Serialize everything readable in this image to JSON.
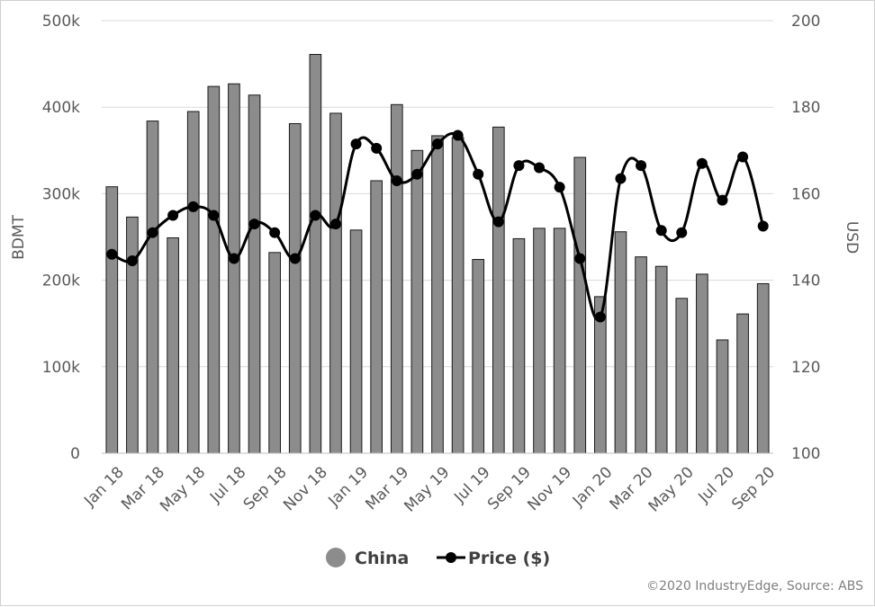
{
  "chart_data": {
    "type": "bar+line",
    "categories": [
      "Jan 18",
      "Feb 18",
      "Mar 18",
      "Apr 18",
      "May 18",
      "Jun 18",
      "Jul 18",
      "Aug 18",
      "Sep 18",
      "Oct 18",
      "Nov 18",
      "Dec 18",
      "Jan 19",
      "Feb 19",
      "Mar 19",
      "Apr 19",
      "May 19",
      "Jun 19",
      "Jul 19",
      "Aug 19",
      "Sep 19",
      "Oct 19",
      "Nov 19",
      "Dec 19",
      "Jan 20",
      "Feb 20",
      "Mar 20",
      "Apr 20",
      "May 20",
      "Jun 20",
      "Jul 20",
      "Aug 20",
      "Sep 20"
    ],
    "x_tick_labels": [
      "Jan 18",
      "Mar 18",
      "May 18",
      "Jul 18",
      "Sep 18",
      "Nov 18",
      "Jan 19",
      "Mar 19",
      "May 19",
      "Jul 19",
      "Sep 19",
      "Nov 19",
      "Jan 20",
      "Mar 20",
      "May 20",
      "Jul 20",
      "Sep 20"
    ],
    "series": [
      {
        "name": "China",
        "type": "bar",
        "axis": "left",
        "color": "#8c8c8c",
        "values": [
          308000,
          273000,
          384000,
          249000,
          395000,
          424000,
          427000,
          414000,
          232000,
          381000,
          461000,
          393000,
          258000,
          315000,
          403000,
          350000,
          367000,
          365000,
          224000,
          377000,
          248000,
          260000,
          260000,
          342000,
          181000,
          256000,
          227000,
          216000,
          179000,
          207000,
          131000,
          161000,
          196000
        ]
      },
      {
        "name": "Price ($)",
        "type": "line",
        "axis": "right",
        "color": "#000000",
        "values": [
          146,
          144.5,
          151,
          155,
          157,
          155,
          145,
          153,
          151,
          145,
          155,
          153,
          171.5,
          170.5,
          163,
          164.5,
          171.5,
          173.5,
          164.5,
          153.5,
          166.5,
          166,
          161.5,
          145,
          131.5,
          163.5,
          166.5,
          151.5,
          151,
          167,
          158.5,
          168.5,
          152.5
        ]
      }
    ],
    "y_left": {
      "label": "BDMT",
      "lim": [
        0,
        500000
      ],
      "ticks": [
        "0",
        "100k",
        "200k",
        "300k",
        "400k",
        "500k"
      ]
    },
    "y_right": {
      "label": "USD",
      "lim": [
        100,
        200
      ],
      "ticks": [
        "100",
        "120",
        "140",
        "160",
        "180",
        "200"
      ]
    },
    "grid": true,
    "legend_position": "bottom",
    "legend": [
      "China",
      "Price ($)"
    ],
    "source": "©2020 IndustryEdge, Source: ABS"
  }
}
